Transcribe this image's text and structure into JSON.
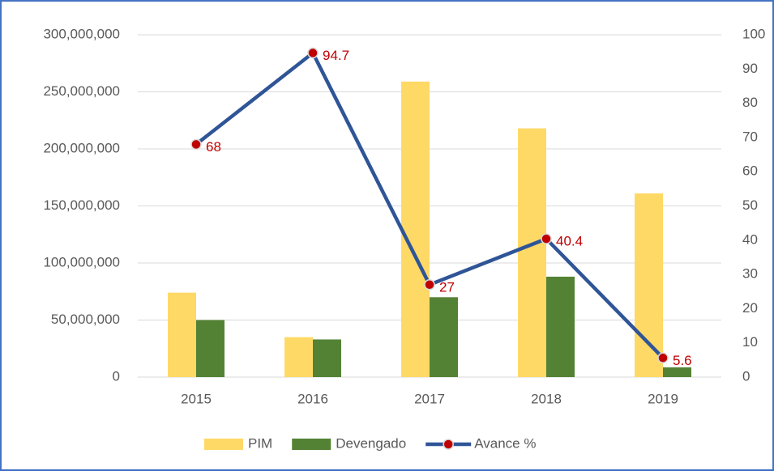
{
  "chart_data": {
    "type": "bar_line",
    "categories": [
      "2015",
      "2016",
      "2017",
      "2018",
      "2019"
    ],
    "series": [
      {
        "name": "PIM",
        "color": "#ffd966",
        "values": [
          74000000,
          35000000,
          259000000,
          218000000,
          161000000
        ]
      },
      {
        "name": "Devengado",
        "color": "#548235",
        "values": [
          50000000,
          33000000,
          70000000,
          88000000,
          8500000
        ]
      },
      {
        "name": "Avance %",
        "color": "#2f5597",
        "marker_color": "#c00000",
        "axis": "y2",
        "values": [
          68,
          94.7,
          27,
          40.4,
          5.6
        ]
      }
    ],
    "ylim": [
      0,
      300000000
    ],
    "yticks": [
      0,
      {
        "value": 50000000,
        "label": "50,000,000"
      },
      {
        "value": 100000000,
        "label": "100,000,000"
      },
      {
        "value": 150000000,
        "label": "150,000,000"
      },
      {
        "value": 200000000,
        "label": "200,000,000"
      },
      {
        "value": 250000000,
        "label": "250,000,000"
      },
      {
        "value": 300000000,
        "label": "300,000,000"
      }
    ],
    "y2lim": [
      0,
      100
    ],
    "y2ticks": [
      0,
      10,
      20,
      30,
      40,
      50,
      60,
      70,
      80,
      90,
      100
    ],
    "grid": true,
    "legend": "bottom"
  }
}
